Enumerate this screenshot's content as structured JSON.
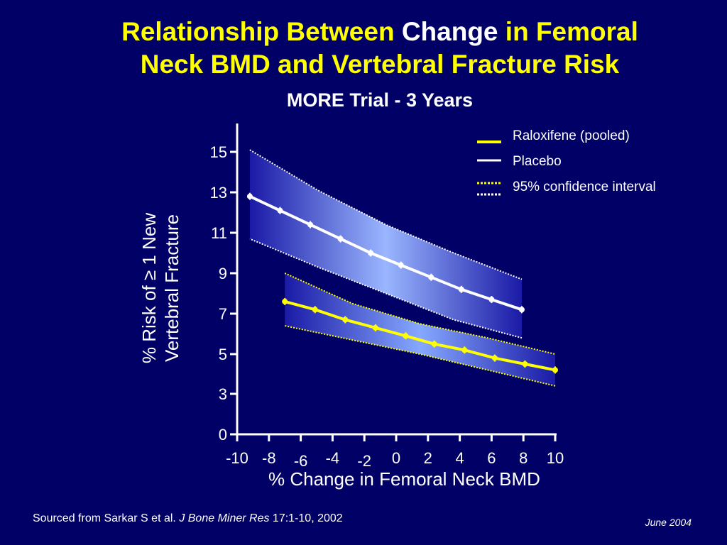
{
  "title": {
    "line1_a": "Relationship Between ",
    "line1_b": "Change",
    "line1_c": " in Femoral",
    "line2": "Neck BMD and Vertebral Fracture Risk"
  },
  "subtitle": "MORE Trial - 3 Years",
  "footer": {
    "source_prefix": "Sourced  from Sarkar S et al.  ",
    "journal": "J Bone Miner Res",
    "citation": " 17:1-10, 2002",
    "date": "June 2004"
  },
  "colors": {
    "background": "#000066",
    "raloxifene": "#ffff00",
    "placebo": "#ffffff",
    "band_dark": "#1a1aa6",
    "band_light": "#8fb0ff"
  },
  "chart_data": {
    "type": "line",
    "xlabel": "% Change in Femoral Neck BMD",
    "ylabel_line1": "% Risk of ≥ 1 New",
    "ylabel_line2": "Vertebral Fracture",
    "xlim": [
      -10,
      10
    ],
    "ylim": [
      0,
      16
    ],
    "x_ticks": [
      "-10",
      "-8",
      "-6",
      "-4",
      "-2",
      "0",
      "2",
      "4",
      "6",
      "8",
      "10"
    ],
    "y_ticks": [
      "0",
      "3",
      "5",
      "7",
      "9",
      "11",
      "13",
      "15"
    ],
    "legend": {
      "position": "top-right",
      "items": [
        {
          "label": "Raloxifene (pooled)",
          "style": "solid",
          "color": "#ffff00"
        },
        {
          "label": "Placebo",
          "style": "solid",
          "color": "#ffffff"
        },
        {
          "label": "95% confidence interval",
          "style": "dotted",
          "color": "#ffff00",
          "color2": "#ffffff"
        }
      ]
    },
    "series": [
      {
        "name": "Placebo",
        "color": "#ffffff",
        "x": [
          -9.2,
          -7.3,
          -5.4,
          -3.5,
          -1.6,
          0.3,
          2.2,
          4.1,
          6.0,
          7.9
        ],
        "y": [
          12.8,
          12.1,
          11.4,
          10.7,
          10.0,
          9.4,
          8.8,
          8.2,
          7.7,
          7.2
        ],
        "ci_lower": [
          10.7,
          9.3,
          8.0,
          6.7,
          5.8
        ],
        "ci_upper": [
          15.1,
          13.1,
          11.4,
          10.0,
          8.7
        ],
        "ci_x": [
          -9.2,
          -4.92,
          -0.65,
          3.62,
          7.9
        ]
      },
      {
        "name": "Raloxifene (pooled)",
        "color": "#ffff00",
        "x": [
          -7.0,
          -5.1,
          -3.2,
          -1.3,
          0.6,
          2.4,
          4.3,
          6.2,
          8.1,
          10.0
        ],
        "y": [
          7.6,
          7.2,
          6.7,
          6.3,
          5.9,
          5.5,
          5.2,
          4.8,
          4.5,
          4.2
        ],
        "ci_lower": [
          6.4,
          5.7,
          5.0,
          4.2,
          3.4
        ],
        "ci_upper": [
          9.0,
          7.5,
          6.5,
          5.8,
          5.0
        ],
        "ci_x": [
          -7.0,
          -2.75,
          1.5,
          5.75,
          10.0
        ]
      }
    ]
  }
}
